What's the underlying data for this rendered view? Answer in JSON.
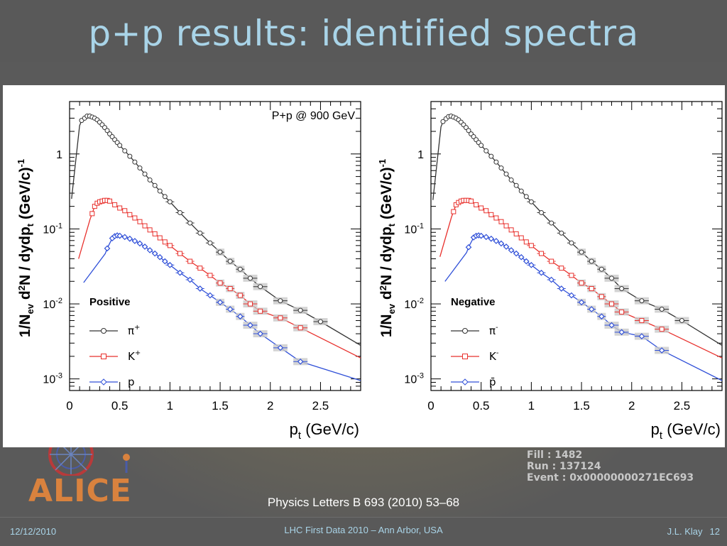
{
  "slide": {
    "title": "p+p results: identified spectra",
    "reference": "Physics Letters B 693 (2010) 53–68",
    "footer_date": "12/12/2010",
    "footer_center": "LHC First Data 2010 – Ann Arbor, USA",
    "footer_author": "J.L. Klay",
    "footer_page": "12",
    "logo_text": "ALICE",
    "event_info": [
      "Fill : 1482",
      "Run : 137124",
      "Event : 0x00000000271EC693"
    ],
    "colors": {
      "title": "#a9d4e8",
      "background": "#595959",
      "pion": "#333333",
      "kaon": "#e8302c",
      "proton": "#3050d8",
      "logo": "#d9823e"
    }
  },
  "chart_data": [
    {
      "type": "scatter",
      "title": "",
      "annotation": "P+p @ 900 GeV",
      "legend_title": "Positive",
      "legend_position": "bottom-left",
      "xlabel": "p_t (GeV/c)",
      "ylabel": "1/N_ev d²N / dydp_t (GeV/c)^-1",
      "xlim": [
        0,
        2.9
      ],
      "ylim": [
        0.0007,
        5
      ],
      "yscale": "log",
      "xticks": [
        "0",
        "0.5",
        "1",
        "1.5",
        "2",
        "2.5"
      ],
      "yticks": [
        "10-3",
        "10-2",
        "10-1",
        "1"
      ],
      "series": [
        {
          "name": "π+",
          "color": "#333333",
          "marker": "circle",
          "x": [
            0.12,
            0.15,
            0.175,
            0.2,
            0.225,
            0.25,
            0.275,
            0.3,
            0.325,
            0.35,
            0.375,
            0.4,
            0.425,
            0.45,
            0.475,
            0.5,
            0.55,
            0.6,
            0.65,
            0.7,
            0.75,
            0.8,
            0.85,
            0.9,
            0.95,
            1.0,
            1.1,
            1.2,
            1.3,
            1.4,
            1.5,
            1.6,
            1.7,
            1.8,
            1.9,
            2.1,
            2.3,
            2.5
          ],
          "y": [
            2.8,
            3.0,
            3.2,
            3.2,
            3.1,
            3.0,
            2.85,
            2.65,
            2.45,
            2.25,
            2.05,
            1.85,
            1.7,
            1.55,
            1.42,
            1.3,
            1.1,
            0.93,
            0.78,
            0.65,
            0.54,
            0.45,
            0.38,
            0.32,
            0.27,
            0.23,
            0.165,
            0.12,
            0.088,
            0.065,
            0.049,
            0.037,
            0.029,
            0.022,
            0.017,
            0.011,
            0.0082,
            0.0058
          ]
        },
        {
          "name": "K+",
          "color": "#e8302c",
          "marker": "square",
          "x": [
            0.225,
            0.25,
            0.275,
            0.3,
            0.325,
            0.35,
            0.375,
            0.4,
            0.45,
            0.5,
            0.55,
            0.6,
            0.65,
            0.7,
            0.75,
            0.8,
            0.85,
            0.9,
            0.95,
            1.0,
            1.1,
            1.2,
            1.3,
            1.4,
            1.5,
            1.6,
            1.7,
            1.8,
            1.9,
            2.1,
            2.3
          ],
          "y": [
            0.16,
            0.2,
            0.22,
            0.23,
            0.235,
            0.24,
            0.24,
            0.235,
            0.21,
            0.19,
            0.175,
            0.155,
            0.14,
            0.125,
            0.11,
            0.097,
            0.086,
            0.076,
            0.067,
            0.06,
            0.047,
            0.037,
            0.03,
            0.024,
            0.019,
            0.016,
            0.013,
            0.01,
            0.008,
            0.0065,
            0.0048
          ]
        },
        {
          "name": "p",
          "color": "#3050d8",
          "marker": "diamond",
          "x": [
            0.375,
            0.425,
            0.45,
            0.475,
            0.5,
            0.55,
            0.6,
            0.65,
            0.7,
            0.75,
            0.8,
            0.85,
            0.9,
            0.95,
            1.0,
            1.1,
            1.2,
            1.3,
            1.4,
            1.5,
            1.6,
            1.7,
            1.8,
            1.9,
            2.1,
            2.3
          ],
          "y": [
            0.055,
            0.075,
            0.08,
            0.082,
            0.081,
            0.078,
            0.074,
            0.069,
            0.064,
            0.058,
            0.052,
            0.047,
            0.042,
            0.037,
            0.033,
            0.026,
            0.021,
            0.016,
            0.013,
            0.0105,
            0.0085,
            0.0068,
            0.0052,
            0.004,
            0.0026,
            0.0017
          ]
        }
      ]
    },
    {
      "type": "scatter",
      "title": "",
      "legend_title": "Negative",
      "legend_position": "bottom-left",
      "xlabel": "p_t (GeV/c)",
      "ylabel": "1/N_ev d²N / dydp_t (GeV/c)^-1",
      "xlim": [
        0,
        2.9
      ],
      "ylim": [
        0.0007,
        5
      ],
      "yscale": "log",
      "xticks": [
        "0",
        "0.5",
        "1",
        "1.5",
        "2",
        "2.5"
      ],
      "yticks": [
        "10-3",
        "10-2",
        "10-1",
        "1"
      ],
      "series": [
        {
          "name": "π-",
          "color": "#333333",
          "marker": "circle",
          "x": [
            0.12,
            0.15,
            0.175,
            0.2,
            0.225,
            0.25,
            0.275,
            0.3,
            0.325,
            0.35,
            0.375,
            0.4,
            0.425,
            0.45,
            0.475,
            0.5,
            0.55,
            0.6,
            0.65,
            0.7,
            0.75,
            0.8,
            0.85,
            0.9,
            0.95,
            1.0,
            1.1,
            1.2,
            1.3,
            1.4,
            1.5,
            1.6,
            1.7,
            1.8,
            1.9,
            2.1,
            2.3,
            2.5
          ],
          "y": [
            2.7,
            2.95,
            3.15,
            3.2,
            3.1,
            3.0,
            2.85,
            2.65,
            2.45,
            2.25,
            2.05,
            1.85,
            1.7,
            1.55,
            1.42,
            1.3,
            1.1,
            0.93,
            0.78,
            0.65,
            0.54,
            0.45,
            0.38,
            0.32,
            0.27,
            0.23,
            0.165,
            0.12,
            0.088,
            0.065,
            0.049,
            0.037,
            0.029,
            0.022,
            0.016,
            0.011,
            0.0085,
            0.006
          ]
        },
        {
          "name": "K-",
          "color": "#e8302c",
          "marker": "square",
          "x": [
            0.225,
            0.25,
            0.275,
            0.3,
            0.325,
            0.35,
            0.375,
            0.4,
            0.45,
            0.5,
            0.55,
            0.6,
            0.65,
            0.7,
            0.75,
            0.8,
            0.85,
            0.9,
            0.95,
            1.0,
            1.1,
            1.2,
            1.3,
            1.4,
            1.5,
            1.6,
            1.7,
            1.8,
            1.9,
            2.1,
            2.3
          ],
          "y": [
            0.17,
            0.21,
            0.225,
            0.235,
            0.24,
            0.24,
            0.24,
            0.235,
            0.21,
            0.19,
            0.175,
            0.155,
            0.14,
            0.125,
            0.11,
            0.097,
            0.086,
            0.076,
            0.067,
            0.06,
            0.047,
            0.037,
            0.03,
            0.024,
            0.019,
            0.016,
            0.0125,
            0.01,
            0.0078,
            0.006,
            0.0046
          ]
        },
        {
          "name": "p̄",
          "color": "#3050d8",
          "marker": "diamond",
          "x": [
            0.375,
            0.425,
            0.45,
            0.475,
            0.5,
            0.55,
            0.6,
            0.65,
            0.7,
            0.75,
            0.8,
            0.85,
            0.9,
            0.95,
            1.0,
            1.1,
            1.2,
            1.3,
            1.4,
            1.5,
            1.6,
            1.7,
            1.8,
            1.9,
            2.1,
            2.3
          ],
          "y": [
            0.057,
            0.077,
            0.081,
            0.082,
            0.081,
            0.078,
            0.074,
            0.069,
            0.064,
            0.058,
            0.052,
            0.047,
            0.042,
            0.037,
            0.033,
            0.026,
            0.021,
            0.016,
            0.013,
            0.0105,
            0.0085,
            0.0068,
            0.0052,
            0.0042,
            0.0037,
            0.0024
          ]
        }
      ]
    }
  ]
}
